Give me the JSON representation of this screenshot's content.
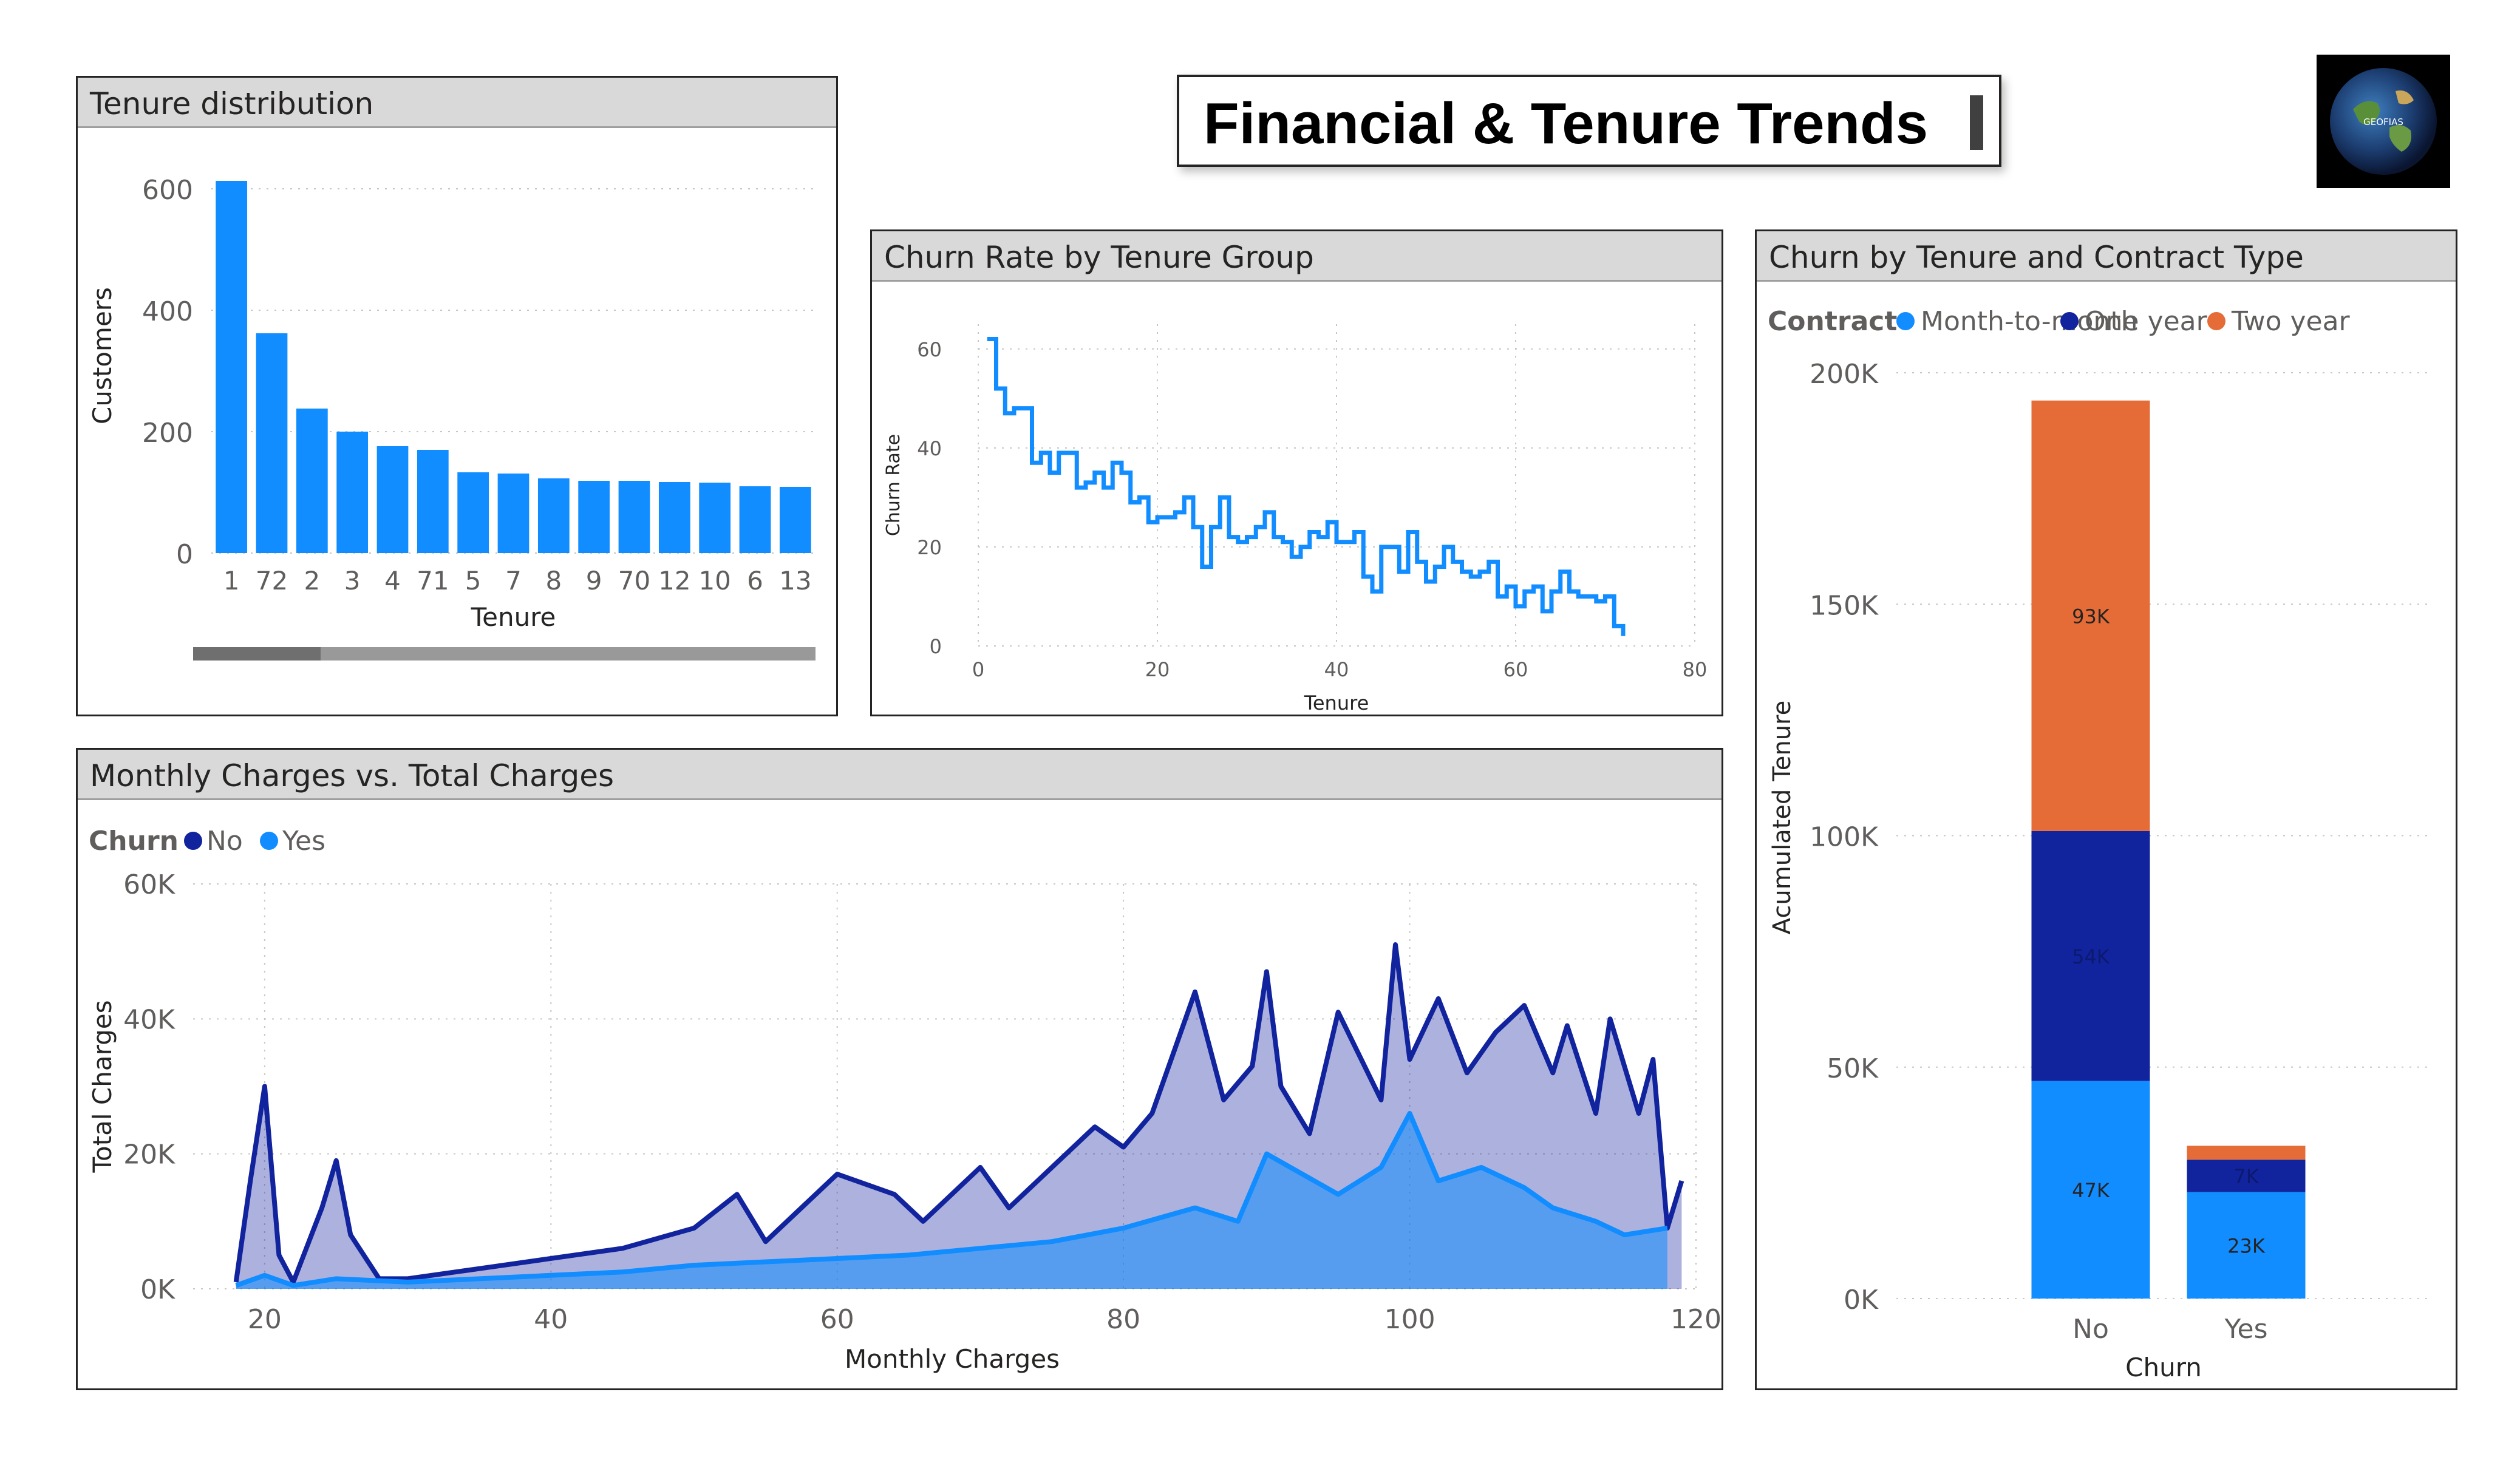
{
  "page": {
    "title": "Financial & Tenure Trends",
    "logo_text": "GEOFIAS"
  },
  "colors": {
    "primary": "#118dff",
    "dark_blue": "#12239e",
    "orange": "#e66c37",
    "header_bg": "#d9d9d9",
    "scrollbar": "#7f7f7f"
  },
  "panels": {
    "tenure_distribution": {
      "title": "Tenure distribution"
    },
    "churn_rate": {
      "title": "Churn Rate by Tenure Group"
    },
    "contract": {
      "title": "Churn by Tenure and Contract Type"
    },
    "charges": {
      "title": "Monthly Charges vs. Total Charges"
    }
  },
  "chart_data": [
    {
      "id": "tenure_distribution",
      "type": "bar",
      "title": "Tenure distribution",
      "xlabel": "Tenure",
      "ylabel": "Customers",
      "categories": [
        "1",
        "72",
        "2",
        "3",
        "4",
        "71",
        "5",
        "7",
        "8",
        "9",
        "70",
        "12",
        "10",
        "6",
        "13"
      ],
      "values": [
        613,
        362,
        238,
        200,
        176,
        170,
        133,
        131,
        123,
        119,
        119,
        117,
        116,
        110,
        109
      ],
      "ylim": [
        0,
        650
      ],
      "yticks": [
        "0",
        "200",
        "400",
        "600"
      ],
      "grid": true
    },
    {
      "id": "churn_rate",
      "type": "line",
      "title": "Churn Rate by Tenure Group",
      "xlabel": "Tenure",
      "ylabel": "Churn Rate",
      "x": [
        1,
        2,
        3,
        4,
        5,
        6,
        7,
        8,
        9,
        10,
        11,
        12,
        13,
        14,
        15,
        16,
        17,
        18,
        19,
        20,
        21,
        22,
        23,
        24,
        25,
        26,
        27,
        28,
        29,
        30,
        31,
        32,
        33,
        34,
        35,
        36,
        37,
        38,
        39,
        40,
        41,
        42,
        43,
        44,
        45,
        46,
        47,
        48,
        49,
        50,
        51,
        52,
        53,
        54,
        55,
        56,
        57,
        58,
        59,
        60,
        61,
        62,
        63,
        64,
        65,
        66,
        67,
        68,
        69,
        70,
        71,
        72
      ],
      "values": [
        62,
        52,
        47,
        48,
        48,
        37,
        39,
        35,
        39,
        39,
        32,
        33,
        35,
        32,
        37,
        35,
        29,
        30,
        25,
        26,
        26,
        27,
        30,
        24,
        16,
        24,
        30,
        22,
        21,
        22,
        24,
        27,
        22,
        21,
        18,
        20,
        23,
        22,
        25,
        21,
        21,
        23,
        14,
        11,
        20,
        20,
        15,
        23,
        17,
        13,
        16,
        20,
        17,
        15,
        14,
        15,
        17,
        10,
        12,
        8,
        11,
        12,
        7,
        11,
        15,
        11,
        10,
        10,
        9,
        10,
        4,
        2
      ],
      "xlim": [
        0,
        80
      ],
      "ylim": [
        0,
        65
      ],
      "xticks": [
        "0",
        "20",
        "40",
        "60",
        "80"
      ],
      "yticks": [
        "0",
        "20",
        "40",
        "60"
      ],
      "grid": true
    },
    {
      "id": "contract",
      "type": "bar",
      "stacked": true,
      "title": "Churn by Tenure and Contract Type",
      "xlabel": "Churn",
      "ylabel": "Acumulated Tenure",
      "legend_title": "Contract",
      "legend_position": "top-left",
      "categories": [
        "No",
        "Yes"
      ],
      "series": [
        {
          "name": "Month-to-month",
          "color": "#118dff",
          "values": [
            47000,
            23000
          ],
          "labels": [
            "47K",
            "23K"
          ]
        },
        {
          "name": "One year",
          "color": "#12239e",
          "values": [
            54000,
            7000
          ],
          "labels": [
            "54K",
            "7K"
          ]
        },
        {
          "name": "Two year",
          "color": "#e66c37",
          "values": [
            93000,
            3000
          ],
          "labels": [
            "93K",
            ""
          ]
        }
      ],
      "ylim": [
        0,
        200000
      ],
      "yticks": [
        "0K",
        "50K",
        "100K",
        "150K",
        "200K"
      ],
      "grid": true
    },
    {
      "id": "charges",
      "type": "area",
      "title": "Monthly Charges vs. Total Charges",
      "xlabel": "Monthly Charges",
      "ylabel": "Total Charges",
      "legend_title": "Churn",
      "legend_position": "top-left",
      "xlim": [
        15,
        120
      ],
      "ylim": [
        0,
        60000
      ],
      "xticks": [
        "20",
        "40",
        "60",
        "80",
        "100",
        "120"
      ],
      "yticks": [
        "0K",
        "20K",
        "40K",
        "60K"
      ],
      "grid": true,
      "series": [
        {
          "name": "No",
          "color": "#12239e",
          "x": [
            18,
            19,
            20,
            21,
            22,
            24,
            25,
            26,
            28,
            30,
            35,
            40,
            45,
            50,
            53,
            55,
            57,
            60,
            64,
            66,
            70,
            72,
            78,
            80,
            82,
            85,
            87,
            89,
            90,
            91,
            93,
            95,
            98,
            99,
            100,
            102,
            104,
            106,
            108,
            110,
            111,
            113,
            114,
            116,
            117,
            118,
            119
          ],
          "values": [
            1000,
            16000,
            30000,
            5000,
            1000,
            12000,
            19000,
            8000,
            1500,
            1500,
            3000,
            4500,
            6000,
            9000,
            14000,
            7000,
            11000,
            17000,
            14000,
            10000,
            18000,
            12000,
            24000,
            21000,
            26000,
            44000,
            28000,
            33000,
            47000,
            30000,
            23000,
            41000,
            28000,
            51000,
            34000,
            43000,
            32000,
            38000,
            42000,
            32000,
            39000,
            26000,
            40000,
            26000,
            34000,
            9000,
            16000
          ]
        },
        {
          "name": "Yes",
          "color": "#118dff",
          "x": [
            18,
            20,
            22,
            25,
            30,
            35,
            40,
            45,
            50,
            55,
            60,
            65,
            70,
            75,
            80,
            85,
            88,
            90,
            95,
            98,
            100,
            102,
            105,
            108,
            110,
            113,
            115,
            118
          ],
          "values": [
            500,
            2000,
            500,
            1500,
            1000,
            1500,
            2000,
            2500,
            3500,
            4000,
            4500,
            5000,
            6000,
            7000,
            9000,
            12000,
            10000,
            20000,
            14000,
            18000,
            26000,
            16000,
            18000,
            15000,
            12000,
            10000,
            8000,
            9000
          ]
        }
      ]
    }
  ]
}
